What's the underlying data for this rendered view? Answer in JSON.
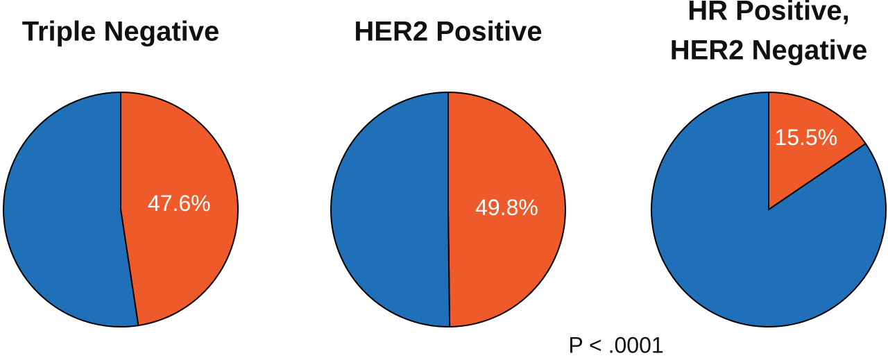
{
  "chart_data": [
    {
      "type": "pie",
      "title": [
        "Triple Negative"
      ],
      "values": [
        47.6,
        52.4
      ],
      "value_labels": [
        "47.6%",
        null
      ],
      "colors": [
        "#ef5a2a",
        "#1f70b8"
      ]
    },
    {
      "type": "pie",
      "title": [
        "HER2 Positive"
      ],
      "values": [
        49.8,
        50.2
      ],
      "value_labels": [
        "49.8%",
        null
      ],
      "colors": [
        "#ef5a2a",
        "#1f70b8"
      ]
    },
    {
      "type": "pie",
      "title": [
        "HR Positive,",
        "HER2 Negative"
      ],
      "values": [
        15.5,
        84.5
      ],
      "value_labels": [
        "15.5%",
        null
      ],
      "colors": [
        "#ef5a2a",
        "#1f70b8"
      ]
    }
  ],
  "annotation": "P < .0001"
}
